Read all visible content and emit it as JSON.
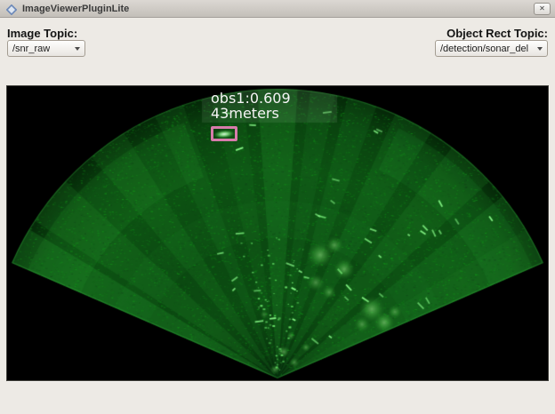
{
  "window": {
    "title": "ImageViewerPluginLite",
    "close_glyph": "✕"
  },
  "controls": {
    "image_topic_label": "Image Topic:",
    "image_topic_value": "/snr_raw",
    "object_rect_topic_label": "Object Rect Topic:",
    "object_rect_topic_value": "/detection/sonar_del"
  },
  "sonar": {
    "annotation_line1": "obs1:0.609",
    "annotation_line2": "43meters"
  },
  "colors": {
    "accent-pink": "#d77cab",
    "annotation-text": "#f4f4f4",
    "window-bg": "#edeae5",
    "panel-bg": "#000000",
    "sonar-green-base": "#0c4c12",
    "sonar-green-bright": "#2daf37",
    "sonar-speckle": "#8cff8c"
  }
}
